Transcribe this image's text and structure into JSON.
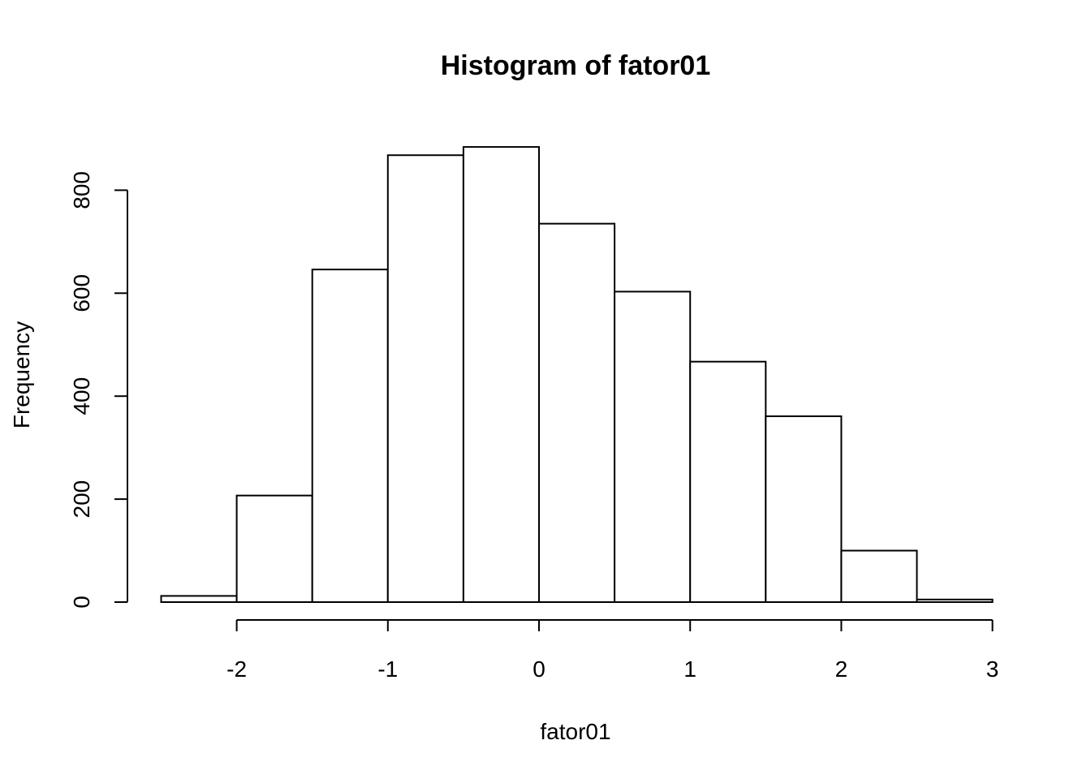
{
  "chart_data": {
    "type": "bar",
    "title": "Histogram of fator01",
    "xlabel": "fator01",
    "ylabel": "Frequency",
    "bins": [
      {
        "x0": -2.5,
        "x1": -2.0,
        "count": 12
      },
      {
        "x0": -2.0,
        "x1": -1.5,
        "count": 207
      },
      {
        "x0": -1.5,
        "x1": -1.0,
        "count": 646
      },
      {
        "x0": -1.0,
        "x1": -0.5,
        "count": 868
      },
      {
        "x0": -0.5,
        "x1": 0.0,
        "count": 884
      },
      {
        "x0": 0.0,
        "x1": 0.5,
        "count": 735
      },
      {
        "x0": 0.5,
        "x1": 1.0,
        "count": 603
      },
      {
        "x0": 1.0,
        "x1": 1.5,
        "count": 467
      },
      {
        "x0": 1.5,
        "x1": 2.0,
        "count": 361
      },
      {
        "x0": 2.0,
        "x1": 2.5,
        "count": 100
      },
      {
        "x0": 2.5,
        "x1": 3.0,
        "count": 5
      }
    ],
    "xticks": [
      -2,
      -1,
      0,
      1,
      2,
      3
    ],
    "xtick_labels": [
      "-2",
      "-1",
      "0",
      "1",
      "2",
      "3"
    ],
    "yticks": [
      0,
      200,
      400,
      600,
      800
    ],
    "ytick_labels": [
      "0",
      "200",
      "400",
      "600",
      "800"
    ],
    "xlim": [
      -2.5,
      3.0
    ],
    "ylim": [
      0,
      884
    ],
    "grid": false,
    "legend": "none"
  }
}
